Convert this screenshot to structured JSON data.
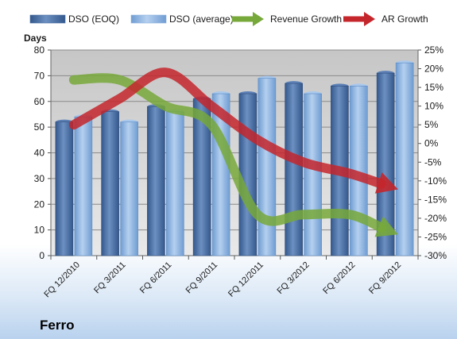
{
  "chart_data": {
    "type": "bar",
    "company": "Ferro",
    "categories": [
      "FQ 12/2010",
      "FQ 3/2011",
      "FQ 6/2011",
      "FQ 9/2011",
      "FQ 12/2011",
      "FQ 3/2012",
      "FQ 6/2012",
      "FQ 9/2012"
    ],
    "series": [
      {
        "name": "DSO (EOQ)",
        "kind": "bar",
        "axis": "left",
        "color": "#4a6fa5",
        "values": [
          52,
          56,
          58,
          61,
          63,
          67,
          66,
          71
        ]
      },
      {
        "name": "DSO (average)",
        "kind": "bar",
        "axis": "left",
        "color": "#8cb2df",
        "values": [
          54,
          52,
          56,
          63,
          69,
          63,
          66,
          75
        ]
      },
      {
        "name": "Revenue Growth",
        "kind": "arrow-line",
        "axis": "right",
        "color": "#77a83a",
        "values": [
          17,
          17,
          10,
          5,
          -19,
          -19,
          -19,
          -24
        ]
      },
      {
        "name": "AR Growth",
        "kind": "arrow-line",
        "axis": "right",
        "color": "#c4262b",
        "values": [
          5,
          12,
          19,
          10,
          1,
          -5,
          -8,
          -12
        ]
      }
    ],
    "ylabel_left": "Days",
    "ylim_left": [
      0,
      80
    ],
    "yticks_left": [
      "0",
      "10",
      "20",
      "30",
      "40",
      "50",
      "60",
      "70",
      "80"
    ],
    "ylim_right": [
      -30,
      25
    ],
    "yticks_right": [
      "-30%",
      "-25%",
      "-20%",
      "-15%",
      "-10%",
      "-5%",
      "0%",
      "5%",
      "10%",
      "15%",
      "20%",
      "25%"
    ],
    "grid": true,
    "legend_position": "top"
  }
}
